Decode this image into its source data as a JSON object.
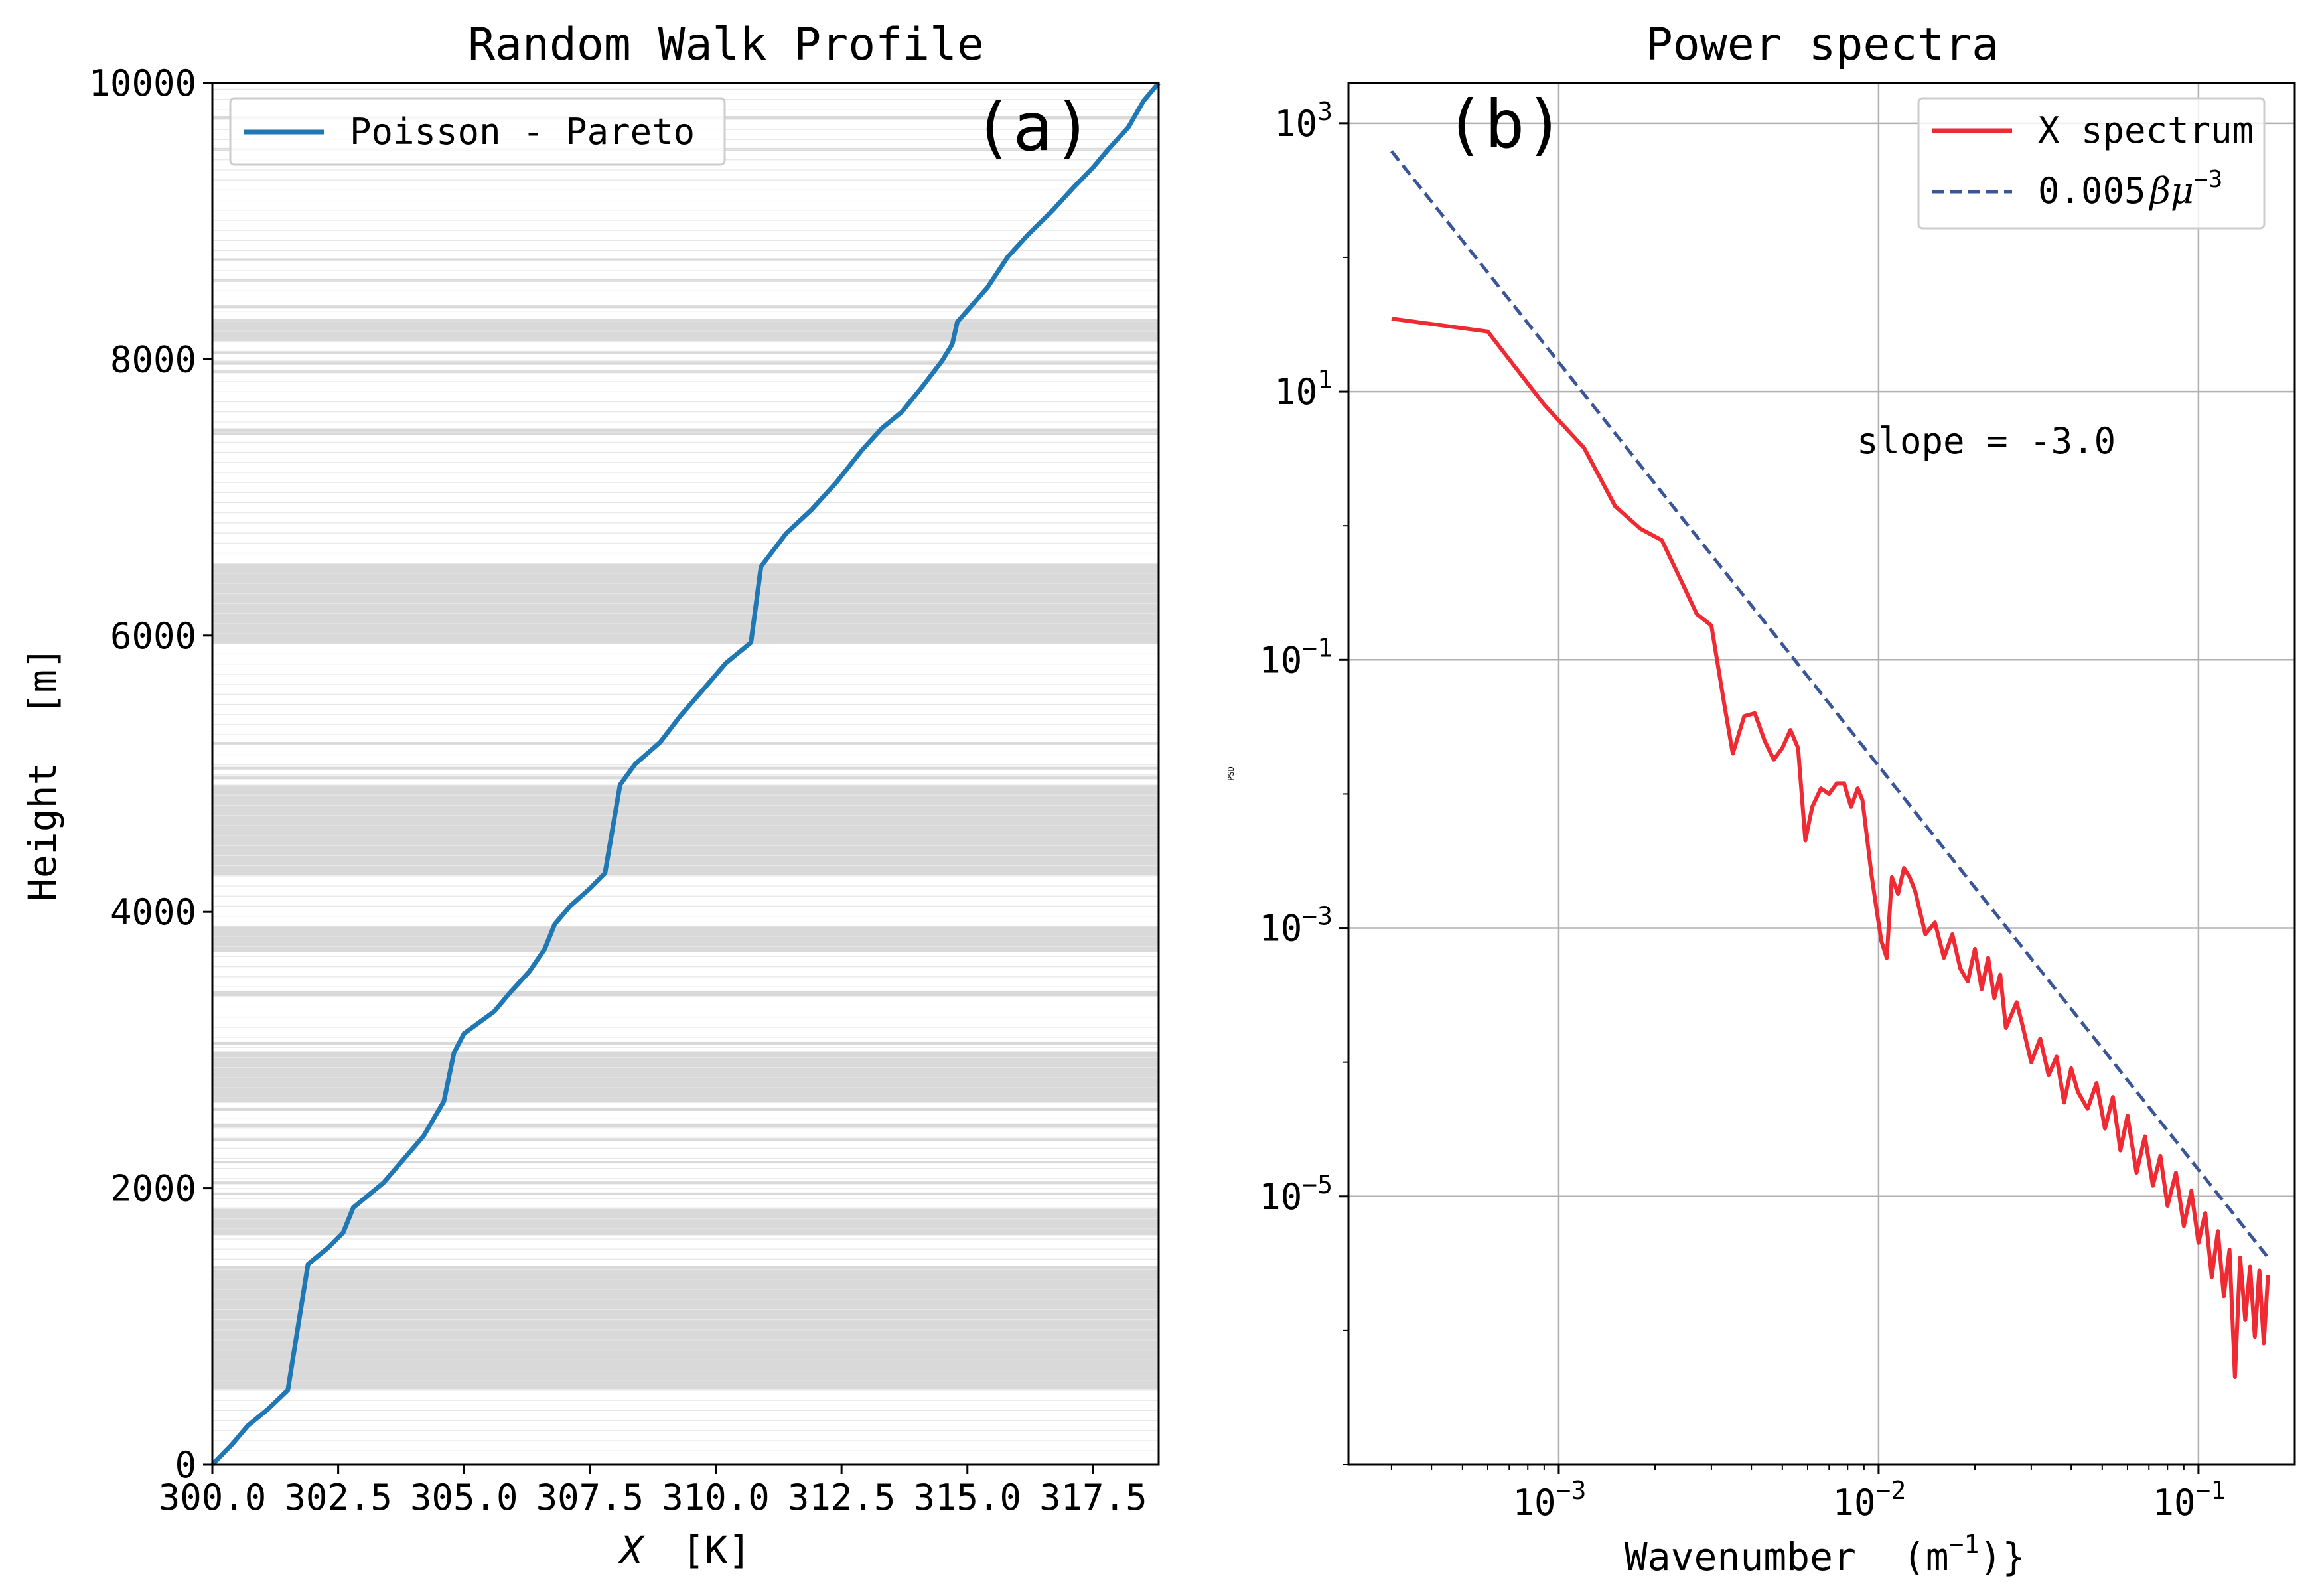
{
  "chart_data": [
    {
      "type": "line",
      "panel_label": "(a)",
      "title": "Random Walk Profile",
      "xlabel_var": "X",
      "xlabel_unit": "[K]",
      "ylabel": "Height  [m]",
      "xlim": [
        300.0,
        318.8
      ],
      "ylim": [
        0,
        10000
      ],
      "xticks": [
        "300.0",
        "302.5",
        "305.0",
        "307.5",
        "310.0",
        "312.5",
        "315.0",
        "317.5"
      ],
      "yticks": [
        "0",
        "2000",
        "4000",
        "6000",
        "8000",
        "10000"
      ],
      "legend": {
        "label": "Poisson - Pareto",
        "color": "#1f77b4",
        "location": "upper left"
      },
      "grid": false,
      "series": [
        {
          "name": "Poisson - Pareto",
          "color": "#1f77b4",
          "points": [
            [
              300.0,
              0
            ],
            [
              300.4,
              150
            ],
            [
              300.7,
              280
            ],
            [
              301.1,
              400
            ],
            [
              301.5,
              540
            ],
            [
              301.9,
              1450
            ],
            [
              302.3,
              1570
            ],
            [
              302.6,
              1680
            ],
            [
              302.8,
              1860
            ],
            [
              303.4,
              2040
            ],
            [
              303.8,
              2210
            ],
            [
              304.2,
              2380
            ],
            [
              304.6,
              2630
            ],
            [
              304.8,
              2980
            ],
            [
              305.0,
              3120
            ],
            [
              305.6,
              3280
            ],
            [
              305.9,
              3410
            ],
            [
              306.3,
              3570
            ],
            [
              306.6,
              3730
            ],
            [
              306.8,
              3910
            ],
            [
              307.1,
              4040
            ],
            [
              307.5,
              4170
            ],
            [
              307.8,
              4280
            ],
            [
              308.1,
              4920
            ],
            [
              308.4,
              5070
            ],
            [
              308.9,
              5230
            ],
            [
              309.3,
              5420
            ],
            [
              309.8,
              5630
            ],
            [
              310.2,
              5800
            ],
            [
              310.7,
              5950
            ],
            [
              310.9,
              6500
            ],
            [
              311.4,
              6740
            ],
            [
              311.9,
              6910
            ],
            [
              312.4,
              7110
            ],
            [
              312.9,
              7340
            ],
            [
              313.3,
              7500
            ],
            [
              313.7,
              7620
            ],
            [
              314.1,
              7800
            ],
            [
              314.5,
              7990
            ],
            [
              314.7,
              8110
            ],
            [
              314.8,
              8270
            ],
            [
              315.4,
              8520
            ],
            [
              315.8,
              8740
            ],
            [
              316.2,
              8900
            ],
            [
              316.7,
              9080
            ],
            [
              317.1,
              9240
            ],
            [
              317.5,
              9390
            ],
            [
              317.8,
              9520
            ],
            [
              318.2,
              9680
            ],
            [
              318.5,
              9870
            ],
            [
              318.8,
              10000
            ]
          ]
        }
      ],
      "shaded_bands_m": [
        [
          545,
          1440
        ],
        [
          1660,
          1860
        ],
        [
          2620,
          2990
        ],
        [
          3710,
          3900
        ],
        [
          3390,
          3430
        ],
        [
          4270,
          4920
        ],
        [
          5940,
          6520
        ],
        [
          7450,
          7500
        ],
        [
          8130,
          8290
        ],
        [
          7960,
          7990
        ],
        [
          7900,
          7920
        ],
        [
          2440,
          2470
        ],
        [
          2340,
          2360
        ],
        [
          2180,
          2200
        ],
        [
          3040,
          3060
        ],
        [
          4960,
          4980
        ],
        [
          5210,
          5230
        ],
        [
          8560,
          8580
        ],
        [
          8710,
          8730
        ],
        [
          9510,
          9530
        ],
        [
          9740,
          9760
        ],
        [
          2560,
          2580
        ],
        [
          1950,
          1970
        ],
        [
          2030,
          2050
        ],
        [
          5030,
          5050
        ],
        [
          8040,
          8060
        ],
        [
          8370,
          8390
        ]
      ]
    },
    {
      "type": "line",
      "panel_label": "(b)",
      "title": "Power spectra",
      "xlabel_base": "Wavenumber  (m",
      "xlabel_exp": "−1",
      "xlabel_tail": ")}",
      "ylabel": "PSD",
      "xscale": "log",
      "yscale": "log",
      "xlim": [
        0.00022,
        0.2
      ],
      "ylim": [
        1e-07,
        2000
      ],
      "xticks": [
        {
          "base": "10",
          "exp": "−3",
          "value": 0.001
        },
        {
          "base": "10",
          "exp": "−2",
          "value": 0.01
        },
        {
          "base": "10",
          "exp": "−1",
          "value": 0.1
        }
      ],
      "yticks": [
        {
          "base": "10",
          "exp": "3",
          "value": 1000
        },
        {
          "base": "10",
          "exp": "1",
          "value": 10
        },
        {
          "base": "10",
          "exp": "−1",
          "value": 0.1
        },
        {
          "base": "10",
          "exp": "−3",
          "value": 0.001
        },
        {
          "base": "10",
          "exp": "−5",
          "value": 1e-05
        }
      ],
      "grid": true,
      "legend": [
        {
          "label": "X spectrum",
          "color": "#ef2a33",
          "style": "solid"
        },
        {
          "label_prefix": "0.005",
          "label_math": "βμ",
          "label_exp": "−3",
          "color": "#3a5698",
          "style": "dashed"
        }
      ],
      "annotation": "slope = -3.0",
      "series": [
        {
          "name": "X spectrum",
          "color": "#ef2a33",
          "points": [
            [
              0.0003,
              35
            ],
            [
              0.0006,
              28
            ],
            [
              0.0009,
              8
            ],
            [
              0.0012,
              3.8
            ],
            [
              0.0015,
              1.4
            ],
            [
              0.0018,
              0.95
            ],
            [
              0.0021,
              0.78
            ],
            [
              0.0024,
              0.4
            ],
            [
              0.0027,
              0.22
            ],
            [
              0.003,
              0.18
            ],
            [
              0.0033,
              0.045
            ],
            [
              0.0035,
              0.02
            ],
            [
              0.0038,
              0.038
            ],
            [
              0.0041,
              0.04
            ],
            [
              0.0044,
              0.025
            ],
            [
              0.0047,
              0.018
            ],
            [
              0.005,
              0.022
            ],
            [
              0.0053,
              0.03
            ],
            [
              0.0056,
              0.022
            ],
            [
              0.0059,
              0.0045
            ],
            [
              0.0062,
              0.008
            ],
            [
              0.0066,
              0.011
            ],
            [
              0.007,
              0.01
            ],
            [
              0.0074,
              0.012
            ],
            [
              0.0078,
              0.012
            ],
            [
              0.0082,
              0.008
            ],
            [
              0.0086,
              0.011
            ],
            [
              0.0089,
              0.009
            ],
            [
              0.0095,
              0.0025
            ],
            [
              0.0098,
              0.0015
            ],
            [
              0.0102,
              0.0008
            ],
            [
              0.0106,
              0.0006
            ],
            [
              0.011,
              0.0024
            ],
            [
              0.0115,
              0.0018
            ],
            [
              0.012,
              0.0028
            ],
            [
              0.0125,
              0.0024
            ],
            [
              0.013,
              0.0019
            ],
            [
              0.014,
              0.0009
            ],
            [
              0.015,
              0.0011
            ],
            [
              0.016,
              0.0006
            ],
            [
              0.017,
              0.0009
            ],
            [
              0.018,
              0.0005
            ],
            [
              0.019,
              0.0004
            ],
            [
              0.02,
              0.0007
            ],
            [
              0.021,
              0.00035
            ],
            [
              0.022,
              0.0006
            ],
            [
              0.023,
              0.0003
            ],
            [
              0.024,
              0.00045
            ],
            [
              0.025,
              0.00018
            ],
            [
              0.027,
              0.00028
            ],
            [
              0.028,
              0.0002
            ],
            [
              0.03,
              0.0001
            ],
            [
              0.032,
              0.00015
            ],
            [
              0.034,
              8e-05
            ],
            [
              0.036,
              0.00011
            ],
            [
              0.038,
              5e-05
            ],
            [
              0.04,
              9e-05
            ],
            [
              0.042,
              6e-05
            ],
            [
              0.045,
              4.5e-05
            ],
            [
              0.048,
              7e-05
            ],
            [
              0.051,
              3.2e-05
            ],
            [
              0.054,
              5.5e-05
            ],
            [
              0.057,
              2.2e-05
            ],
            [
              0.06,
              4e-05
            ],
            [
              0.064,
              1.5e-05
            ],
            [
              0.068,
              2.8e-05
            ],
            [
              0.072,
              1.2e-05
            ],
            [
              0.076,
              2e-05
            ],
            [
              0.08,
              8.5e-06
            ],
            [
              0.085,
              1.5e-05
            ],
            [
              0.09,
              6e-06
            ],
            [
              0.095,
              1.1e-05
            ],
            [
              0.1,
              4.5e-06
            ],
            [
              0.105,
              7.5e-06
            ],
            [
              0.11,
              2.5e-06
            ],
            [
              0.115,
              5.5e-06
            ],
            [
              0.12,
              1.8e-06
            ],
            [
              0.125,
              4e-06
            ],
            [
              0.13,
              4.5e-07
            ],
            [
              0.135,
              3.5e-06
            ],
            [
              0.14,
              1.2e-06
            ],
            [
              0.145,
              3e-06
            ],
            [
              0.15,
              9e-07
            ],
            [
              0.155,
              2.8e-06
            ],
            [
              0.16,
              8e-07
            ],
            [
              0.165,
              2.6e-06
            ]
          ]
        },
        {
          "name": "0.005 βμ^−3",
          "color": "#3a5698",
          "style": "dashed",
          "points": [
            [
              0.0003,
              620
            ],
            [
              0.165,
              3.5e-06
            ]
          ]
        }
      ]
    }
  ]
}
